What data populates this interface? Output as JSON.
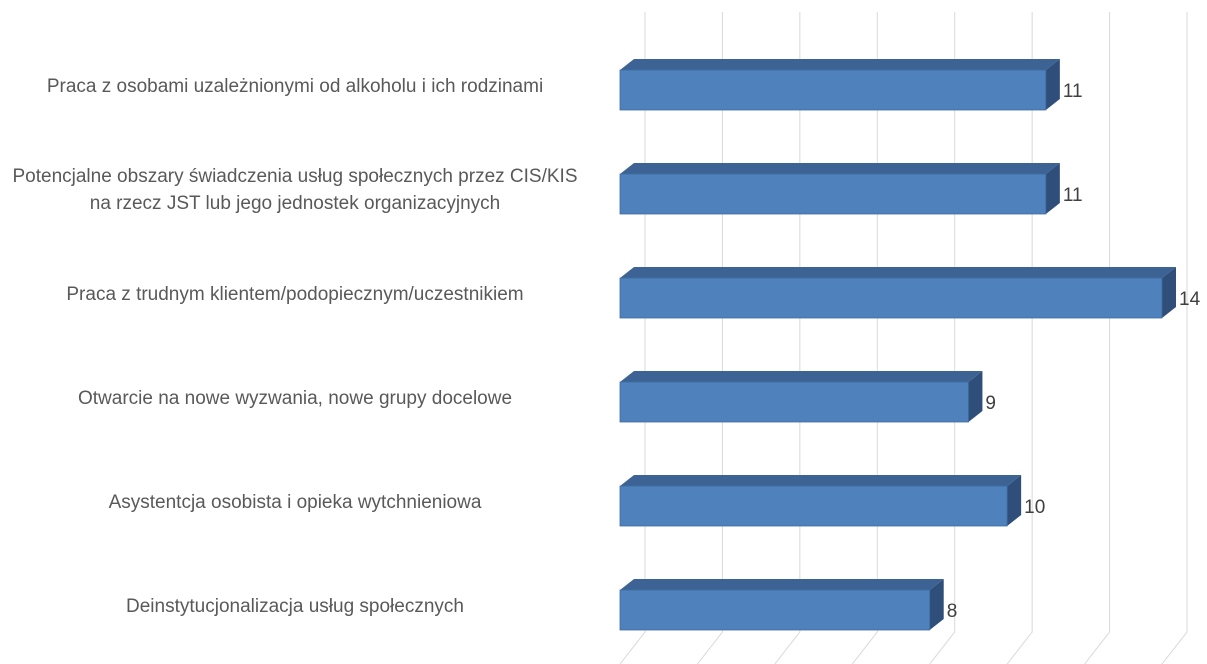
{
  "chart_data": {
    "type": "bar",
    "orientation": "horizontal",
    "categories": [
      "Praca z osobami uzależnionymi od alkoholu i ich rodzinami",
      "Potencjalne obszary świadczenia usług społecznych przez CIS/KIS na rzecz JST lub jego jednostek organizacyjnych",
      "Praca z trudnym klientem/podopiecznym/uczestnikiem",
      "Otwarcie na nowe wyzwania, nowe grupy docelowe",
      "Asystentcja osobista i opieka wytchnieniowa",
      "Deinstytucjonalizacja usług społecznych"
    ],
    "values": [
      11,
      11,
      14,
      9,
      10,
      8
    ],
    "color": "#4f81bd",
    "xlim": [
      0,
      14
    ],
    "xticks": [
      0,
      2,
      4,
      6,
      8,
      10,
      12,
      14
    ],
    "grid": true
  }
}
